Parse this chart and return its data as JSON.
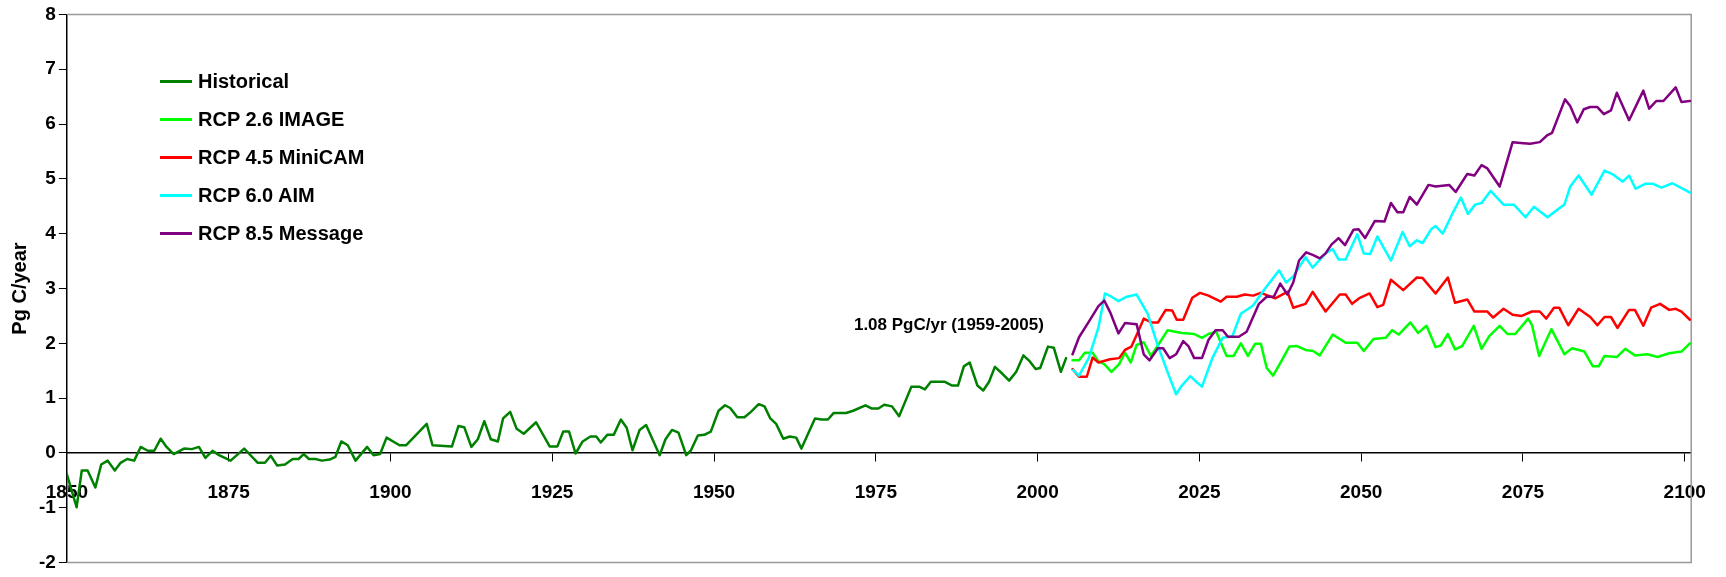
{
  "chart_data": {
    "type": "line",
    "ylabel": "Pg C/year",
    "xlim": [
      1850,
      2101
    ],
    "xticks": [
      1850,
      1875,
      1900,
      1925,
      1950,
      1975,
      2000,
      2025,
      2050,
      2075,
      2100
    ],
    "ylim": [
      -2,
      8
    ],
    "yticks": [
      -2,
      -1,
      0,
      1,
      2,
      3,
      4,
      5,
      6,
      7,
      8
    ],
    "grid": false,
    "legend": "top left",
    "marker": "none",
    "line_style": "solid",
    "annotations": [
      "1.08 PgC/yr (1959-2005)"
    ],
    "series": [
      {
        "name": "Historical",
        "color": "#008000",
        "x": [
          1850,
          1851.5,
          1852.3,
          1853.2,
          1854.4,
          1855.3,
          1856.3,
          1857.4,
          1858.3,
          1859.3,
          1860.4,
          1861.4,
          1862.5,
          1863.5,
          1864.5,
          1865.4,
          1866.5,
          1868.1,
          1869.3,
          1870.4,
          1871.4,
          1872.5,
          1873.5,
          1875.3,
          1877.4,
          1879.5,
          1880.6,
          1881.5,
          1882.5,
          1883.7,
          1884.9,
          1885.8,
          1886.6,
          1887.4,
          1888.4,
          1889.4,
          1890.6,
          1891.5,
          1892.4,
          1893.4,
          1894.6,
          1896.4,
          1897.4,
          1898.4,
          1899.4,
          1901.4,
          1902.4,
          1905.6,
          1906.5,
          1909.5,
          1910.5,
          1911.4,
          1912.5,
          1913.5,
          1914.5,
          1915.5,
          1916.6,
          1917.4,
          1918.5,
          1919.5,
          1920.6,
          1922.5,
          1924.6,
          1925.8,
          1926.7,
          1927.6,
          1928.6,
          1929.7,
          1930.9,
          1931.8,
          1932.5,
          1933.5,
          1934.5,
          1935.6,
          1936.5,
          1937.4,
          1938.5,
          1939.5,
          1941.6,
          1942.5,
          1943.5,
          1944.5,
          1945.7,
          1946.4,
          1947.5,
          1948.5,
          1949.5,
          1950.7,
          1951.7,
          1952.5,
          1953.6,
          1954.7,
          1955.7,
          1956.9,
          1957.8,
          1958.7,
          1959.6,
          1960.7,
          1961.7,
          1962.7,
          1963.5,
          1965.6,
          1966.6,
          1967.6,
          1968.5,
          1970.4,
          1971.5,
          1973.4,
          1974.4,
          1975.4,
          1976.3,
          1977.5,
          1978.6,
          1980.5,
          1981.7,
          1982.6,
          1983.5,
          1985.6,
          1986.8,
          1987.7,
          1988.6,
          1989.5,
          1990.7,
          1991.6,
          1992.5,
          1993.4,
          1994.6,
          1995.6,
          1996.7,
          1997.8,
          1998.8,
          1999.7,
          2000.4,
          2001.6,
          2002.5,
          2003.6,
          2004.4
        ],
        "values": [
          -0.39,
          -0.99,
          -0.32,
          -0.32,
          -0.63,
          -0.21,
          -0.14,
          -0.32,
          -0.18,
          -0.11,
          -0.14,
          0.11,
          0.04,
          0.04,
          0.26,
          0.11,
          -0.02,
          0.08,
          0.07,
          0.11,
          -0.09,
          0.04,
          -0.04,
          -0.14,
          0.08,
          -0.18,
          -0.18,
          -0.05,
          -0.23,
          -0.21,
          -0.11,
          -0.11,
          -0.02,
          -0.11,
          -0.11,
          -0.14,
          -0.12,
          -0.07,
          0.21,
          0.14,
          -0.14,
          0.11,
          -0.04,
          -0.02,
          0.28,
          0.14,
          0.14,
          0.53,
          0.14,
          0.12,
          0.49,
          0.47,
          0.11,
          0.25,
          0.58,
          0.25,
          0.21,
          0.63,
          0.75,
          0.44,
          0.35,
          0.56,
          0.12,
          0.12,
          0.39,
          0.39,
          -0.01,
          0.21,
          0.3,
          0.3,
          0.19,
          0.33,
          0.33,
          0.61,
          0.46,
          0.05,
          0.42,
          0.51,
          -0.04,
          0.25,
          0.42,
          0.37,
          -0.04,
          0.04,
          0.32,
          0.33,
          0.39,
          0.77,
          0.87,
          0.82,
          0.65,
          0.65,
          0.75,
          0.89,
          0.85,
          0.63,
          0.53,
          0.26,
          0.3,
          0.28,
          0.08,
          0.63,
          0.61,
          0.61,
          0.73,
          0.73,
          0.77,
          0.87,
          0.81,
          0.81,
          0.88,
          0.85,
          0.67,
          1.21,
          1.21,
          1.16,
          1.3,
          1.3,
          1.23,
          1.23,
          1.58,
          1.65,
          1.23,
          1.14,
          1.3,
          1.57,
          1.44,
          1.32,
          1.48,
          1.78,
          1.67,
          1.53,
          1.55,
          1.94,
          1.92,
          1.48,
          1.73
        ]
      },
      {
        "name": "RCP 2.6 IMAGE",
        "color": "#00ff00",
        "x": [
          2005.4,
          2006.4,
          2007.3,
          2008.5,
          2009.4,
          2010.3,
          2011.4,
          2012.6,
          2013.5,
          2014.4,
          2015.3,
          2016.4,
          2017.5,
          2018.9,
          2020.1,
          2022.3,
          2024.2,
          2025.4,
          2026.4,
          2027.6,
          2029.2,
          2030.3,
          2031.4,
          2032.5,
          2033.6,
          2034.5,
          2035.4,
          2036.4,
          2037.6,
          2038.9,
          2040.1,
          2041.4,
          2042.6,
          2043.6,
          2045.6,
          2047.6,
          2049.4,
          2050.4,
          2051.9,
          2053.8,
          2054.8,
          2055.8,
          2057.6,
          2058.8,
          2060.1,
          2061.5,
          2062.3,
          2063.4,
          2064.5,
          2065.6,
          2067.4,
          2068.6,
          2069.8,
          2071.4,
          2072.6,
          2073.8,
          2075.8,
          2076.4,
          2077.5,
          2079.4,
          2081.4,
          2082.6,
          2084.5,
          2085.8,
          2086.7,
          2087.6,
          2089.5,
          2090.8,
          2092.3,
          2094.2,
          2095.8,
          2097.6,
          2099.5,
          2100.8
        ],
        "values": [
          1.69,
          1.69,
          1.83,
          1.83,
          1.67,
          1.62,
          1.48,
          1.62,
          1.83,
          1.65,
          1.97,
          2.02,
          1.77,
          2.02,
          2.24,
          2.19,
          2.17,
          2.1,
          2.17,
          2.21,
          1.77,
          1.77,
          2,
          1.77,
          1.99,
          1.99,
          1.55,
          1.41,
          1.66,
          1.94,
          1.95,
          1.88,
          1.86,
          1.78,
          2.16,
          2.01,
          2.01,
          1.86,
          2.08,
          2.1,
          2.24,
          2.16,
          2.38,
          2.19,
          2.32,
          1.93,
          1.96,
          2.17,
          1.89,
          1.95,
          2.32,
          1.9,
          2.13,
          2.32,
          2.17,
          2.17,
          2.45,
          2.33,
          1.77,
          2.26,
          1.8,
          1.91,
          1.85,
          1.58,
          1.58,
          1.77,
          1.75,
          1.9,
          1.78,
          1.8,
          1.75,
          1.82,
          1.85,
          2
        ]
      },
      {
        "name": "RCP 4.5 MiniCAM",
        "color": "#ff0000",
        "x": [
          2005.4,
          2006.4,
          2007.6,
          2008.5,
          2009.4,
          2011.2,
          2012.6,
          2013.5,
          2014.5,
          2015.3,
          2016.4,
          2017.6,
          2018.6,
          2019.8,
          2020.8,
          2021.5,
          2022.5,
          2023.9,
          2025.1,
          2026.4,
          2028.3,
          2029.2,
          2030.8,
          2032,
          2033.3,
          2034.5,
          2036.7,
          2038.6,
          2039.5,
          2041.4,
          2042.5,
          2044.5,
          2046.7,
          2047.6,
          2048.6,
          2049.8,
          2051.3,
          2052.5,
          2053.4,
          2054.6,
          2056.5,
          2058.6,
          2059.5,
          2061.5,
          2063.4,
          2064.5,
          2066.4,
          2067.5,
          2069.5,
          2070.4,
          2072,
          2073.4,
          2074.8,
          2076.4,
          2077.6,
          2078.6,
          2079.8,
          2080.6,
          2082,
          2083.6,
          2085.4,
          2086.5,
          2087.6,
          2088.6,
          2089.6,
          2091.4,
          2092.3,
          2093.6,
          2094.8,
          2096.2,
          2097.6,
          2098.6,
          2099.5,
          2100.8
        ],
        "values": [
          1.53,
          1.39,
          1.39,
          1.74,
          1.65,
          1.71,
          1.73,
          1.88,
          1.94,
          2.15,
          2.45,
          2.38,
          2.38,
          2.61,
          2.6,
          2.43,
          2.43,
          2.83,
          2.92,
          2.87,
          2.76,
          2.85,
          2.85,
          2.89,
          2.87,
          2.92,
          2.82,
          2.94,
          2.65,
          2.72,
          2.94,
          2.58,
          2.89,
          2.89,
          2.72,
          2.83,
          2.91,
          2.66,
          2.7,
          3.16,
          2.97,
          3.2,
          3.19,
          2.91,
          3.2,
          2.74,
          2.8,
          2.58,
          2.58,
          2.47,
          2.63,
          2.52,
          2.5,
          2.58,
          2.58,
          2.45,
          2.65,
          2.65,
          2.33,
          2.63,
          2.48,
          2.33,
          2.48,
          2.48,
          2.28,
          2.61,
          2.61,
          2.32,
          2.65,
          2.72,
          2.61,
          2.63,
          2.58,
          2.43
        ]
      },
      {
        "name": "RCP 6.0 AIM",
        "color": "#00ffff",
        "x": [
          2005.5,
          2006.4,
          2007.9,
          2009.4,
          2010.4,
          2011.4,
          2012.5,
          2013.8,
          2015.3,
          2017,
          2018.6,
          2020.1,
          2021.4,
          2022.3,
          2023.6,
          2024.5,
          2025.4,
          2027,
          2028.6,
          2030.1,
          2031.4,
          2033.3,
          2035.1,
          2037.3,
          2038.4,
          2039.5,
          2041.4,
          2042.5,
          2044.5,
          2045.6,
          2046.5,
          2047.6,
          2049.4,
          2050.4,
          2051.4,
          2052.5,
          2054.6,
          2056.4,
          2057.5,
          2058.6,
          2059.5,
          2060.8,
          2061.5,
          2062.6,
          2064.2,
          2065.4,
          2066.5,
          2067.6,
          2068.6,
          2070,
          2072,
          2073.6,
          2075.4,
          2076.7,
          2078.8,
          2080.1,
          2081.4,
          2082.3,
          2083.6,
          2085.6,
          2087.6,
          2088.9,
          2090.4,
          2091.4,
          2092.4,
          2093.9,
          2095.1,
          2096.4,
          2098.1,
          2100.8
        ],
        "values": [
          1.51,
          1.41,
          1.73,
          2.29,
          2.91,
          2.85,
          2.77,
          2.85,
          2.89,
          2.54,
          1.95,
          1.47,
          1.07,
          1.23,
          1.4,
          1.3,
          1.21,
          1.73,
          2.1,
          2.13,
          2.54,
          2.69,
          2.99,
          3.33,
          3.11,
          3.22,
          3.57,
          3.38,
          3.64,
          3.72,
          3.53,
          3.53,
          3.99,
          3.64,
          3.63,
          3.95,
          3.51,
          4.03,
          3.77,
          3.88,
          3.83,
          4.08,
          4.14,
          4,
          4.39,
          4.66,
          4.36,
          4.53,
          4.56,
          4.78,
          4.53,
          4.53,
          4.3,
          4.49,
          4.3,
          4.42,
          4.53,
          4.86,
          5.06,
          4.71,
          5.15,
          5.08,
          4.95,
          5.06,
          4.82,
          4.91,
          4.91,
          4.84,
          4.92,
          4.75
        ]
      },
      {
        "name": "RCP 8.5 Message",
        "color": "#800080",
        "x": [
          2005.4,
          2006.4,
          2007.9,
          2009.4,
          2010.3,
          2011.2,
          2012.5,
          2013.5,
          2015.3,
          2016.4,
          2017.3,
          2018.6,
          2019.4,
          2020.4,
          2021.4,
          2022.5,
          2023.3,
          2024.2,
          2025.4,
          2026.4,
          2027.5,
          2028.6,
          2029.4,
          2031.1,
          2032.3,
          2034.2,
          2035.4,
          2036.5,
          2037.5,
          2038.6,
          2039.5,
          2040.4,
          2041.5,
          2042.6,
          2043.6,
          2044.5,
          2045.4,
          2046.5,
          2047.5,
          2048.8,
          2049.6,
          2050.6,
          2052.1,
          2053.6,
          2054.6,
          2055.6,
          2056.5,
          2057.5,
          2058.6,
          2060.4,
          2061.5,
          2063.6,
          2064.6,
          2066.4,
          2067.5,
          2068.6,
          2069.5,
          2071.4,
          2073.4,
          2076.1,
          2077.6,
          2078.8,
          2079.5,
          2081.5,
          2082.3,
          2083.4,
          2084.4,
          2085.4,
          2086.5,
          2087.5,
          2088.6,
          2089.5,
          2091.4,
          2093.6,
          2094.5,
          2095.6,
          2096.7,
          2098.6,
          2099.5,
          2100.8
        ],
        "values": [
          1.8,
          2.11,
          2.39,
          2.68,
          2.78,
          2.57,
          2.18,
          2.37,
          2.35,
          1.8,
          1.69,
          1.91,
          1.91,
          1.73,
          1.8,
          2.04,
          1.95,
          1.73,
          1.73,
          2.06,
          2.24,
          2.24,
          2.12,
          2.12,
          2.21,
          2.72,
          2.85,
          2.85,
          3.09,
          2.89,
          3.11,
          3.51,
          3.66,
          3.61,
          3.55,
          3.64,
          3.8,
          3.92,
          3.79,
          4.07,
          4.08,
          3.92,
          4.23,
          4.22,
          4.56,
          4.39,
          4.39,
          4.67,
          4.53,
          4.89,
          4.86,
          4.89,
          4.76,
          5.09,
          5.06,
          5.25,
          5.19,
          4.86,
          5.67,
          5.64,
          5.67,
          5.8,
          5.84,
          6.45,
          6.33,
          6.03,
          6.27,
          6.31,
          6.31,
          6.18,
          6.25,
          6.57,
          6.07,
          6.61,
          6.28,
          6.42,
          6.42,
          6.67,
          6.4,
          6.42
        ]
      }
    ]
  }
}
